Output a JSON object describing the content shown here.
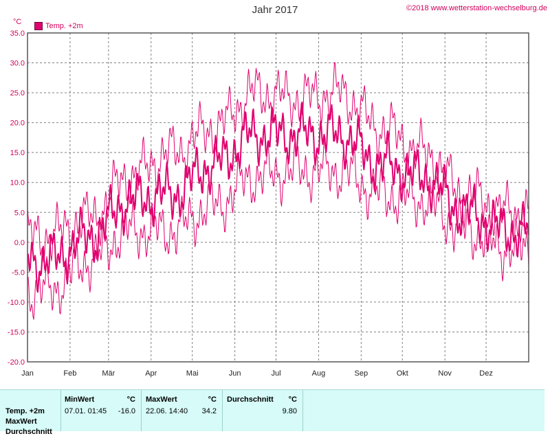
{
  "header": {
    "title": "Jahr 2017",
    "copyright": "©2018 www.wetterstation-wechselburg.de"
  },
  "legend": {
    "label": "Temp. +2m",
    "color": "#e0006e"
  },
  "colors": {
    "series": "#e0006e",
    "axis_text": "#d0005c",
    "grid": "#808080",
    "stats_bg": "#d6fbf8"
  },
  "chart_data": {
    "type": "line",
    "title": "Jahr 2017",
    "ylabel": "°C",
    "ylim": [
      -20,
      35
    ],
    "yticks": [
      "35.0",
      "30.0",
      "25.0",
      "20.0",
      "15.0",
      "10.0",
      "5.0",
      "0.0",
      "-5.0",
      "-10.0",
      "-15.0",
      "-20.0"
    ],
    "xlim": [
      0,
      365
    ],
    "months": [
      "Jan",
      "Feb",
      "Mär",
      "Apr",
      "Mai",
      "Jun",
      "Jul",
      "Aug",
      "Sep",
      "Okt",
      "Nov",
      "Dez"
    ],
    "month_start_days": [
      0,
      31,
      59,
      90,
      120,
      151,
      181,
      212,
      243,
      273,
      304,
      334
    ],
    "grid": true,
    "legend_position": "top-left",
    "series": [
      {
        "name": "Temp. +2m",
        "role": "max",
        "monthly_values": [
          1,
          4,
          11,
          15,
          19,
          25,
          24,
          25,
          19,
          15,
          8,
          5
        ]
      },
      {
        "name": "Temp. +2m",
        "role": "mean",
        "monthly_values": [
          -3,
          1,
          7,
          8,
          13,
          18,
          18,
          18,
          13,
          11,
          5,
          2
        ]
      },
      {
        "name": "Temp. +2m",
        "role": "min",
        "monthly_values": [
          -8,
          -3,
          2,
          2,
          6,
          11,
          12,
          12,
          8,
          7,
          2,
          -1
        ]
      }
    ]
  },
  "stats": {
    "row_labels": [
      "Temp. +2m",
      "MaxWert",
      "Durchschnitt"
    ],
    "min": {
      "label": "MinWert",
      "unit": "°C",
      "datetime": "07.01.  01:45",
      "value": "-16.0"
    },
    "max": {
      "label": "MaxWert",
      "unit": "°C",
      "datetime": "22.06.  14:40",
      "value": "34.2"
    },
    "avg": {
      "label": "Durchschnitt",
      "unit": "°C",
      "value": "9.80"
    }
  }
}
